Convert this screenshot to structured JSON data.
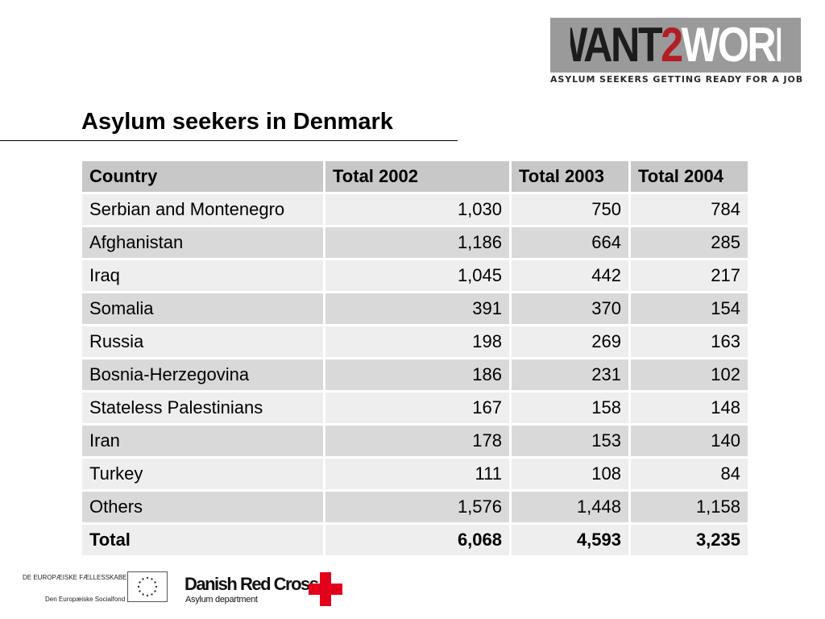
{
  "logo": {
    "part1": "WANT",
    "part2": "2",
    "part3": "WORK",
    "tagline": "ASYLUM SEEKERS GETTING READY FOR A JOB",
    "colors": {
      "box": "#9a9a9a",
      "accent": "#b11e23"
    }
  },
  "title": "Asylum seekers in Denmark",
  "table": {
    "headers": [
      "Country",
      "Total 2002",
      "Total 2003",
      "Total 2004"
    ],
    "rows": [
      [
        "Serbian and Montenegro",
        "1,030",
        "750",
        "784"
      ],
      [
        "Afghanistan",
        "1,186",
        "664",
        "285"
      ],
      [
        "Iraq",
        "1,045",
        "442",
        "217"
      ],
      [
        "Somalia",
        "391",
        "370",
        "154"
      ],
      [
        "Russia",
        "198",
        "269",
        "163"
      ],
      [
        "Bosnia-Herzegovina",
        "186",
        "231",
        "102"
      ],
      [
        "Stateless Palestinians",
        "167",
        "158",
        "148"
      ],
      [
        "Iran",
        "178",
        "153",
        "140"
      ],
      [
        "Turkey",
        "111",
        "108",
        "84"
      ],
      [
        "Others",
        "1,576",
        "1,448",
        "1,158"
      ]
    ],
    "total": [
      "Total",
      "6,068",
      "4,593",
      "3,235"
    ]
  },
  "footer": {
    "eu_line1": "DE EUROPÆISKE FÆLLESSKABER",
    "eu_line2": "Den Europæiske Socialfond",
    "drc_name": "Danish Red Cross",
    "drc_dept": "Asylum department",
    "cross_color": "#e3001b"
  }
}
